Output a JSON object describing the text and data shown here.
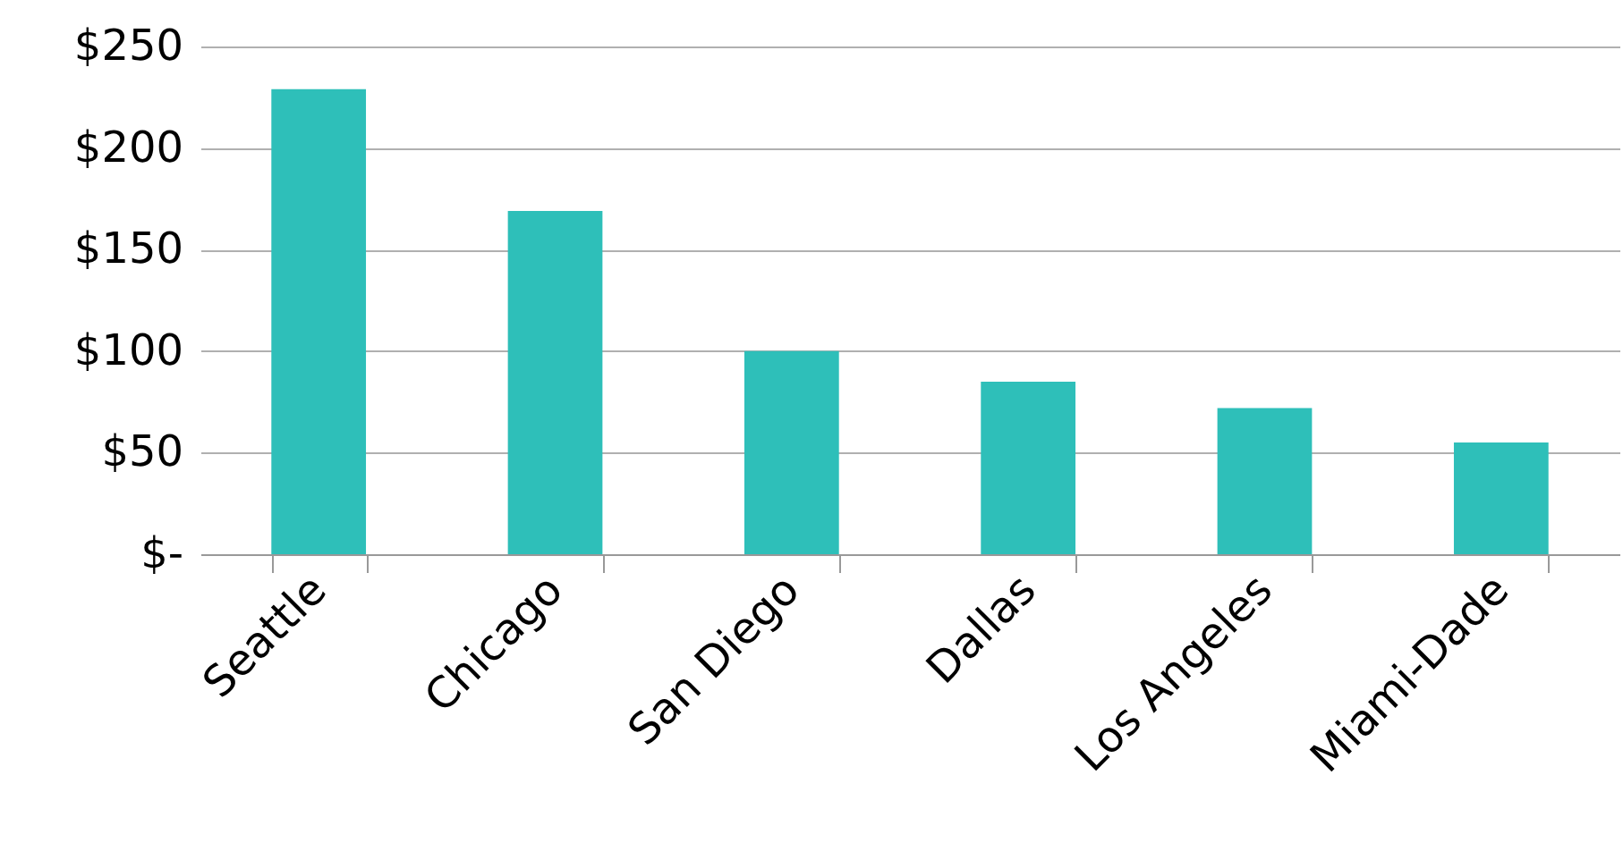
{
  "chart_data": {
    "type": "bar",
    "categories": [
      "Seattle",
      "Chicago",
      "San Diego",
      "Dallas",
      "Los Angeles",
      "Miami-Dade"
    ],
    "values": [
      229,
      169,
      100,
      85,
      72,
      55
    ],
    "color": "#2ebfb9",
    "ylim": [
      0,
      250
    ],
    "yticks": [
      {
        "value": 0,
        "label": "$-"
      },
      {
        "value": 50,
        "label": "$50"
      },
      {
        "value": 100,
        "label": "$100"
      },
      {
        "value": 150,
        "label": "$150"
      },
      {
        "value": 200,
        "label": "$200"
      },
      {
        "value": 250,
        "label": "$250"
      }
    ],
    "grid": "y"
  }
}
